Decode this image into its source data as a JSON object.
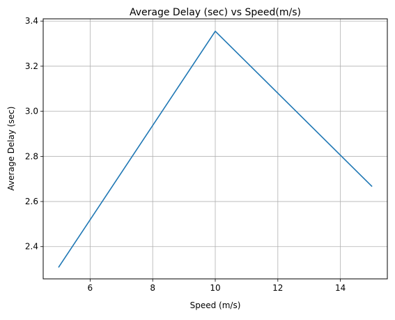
{
  "chart_data": {
    "type": "line",
    "title": "Average Delay (sec) vs Speed(m/s)",
    "xlabel": "Speed (m/s)",
    "ylabel": "Average Delay (sec)",
    "xlim": [
      4.5,
      15.5
    ],
    "ylim": [
      2.257,
      3.41
    ],
    "x_ticks": [
      6,
      8,
      10,
      12,
      14
    ],
    "x_tick_labels": [
      "6",
      "8",
      "10",
      "12",
      "14"
    ],
    "y_ticks": [
      2.4,
      2.6,
      2.8,
      3.0,
      3.2,
      3.4
    ],
    "y_tick_labels": [
      "2.4",
      "2.6",
      "2.8",
      "3.0",
      "3.2",
      "3.4"
    ],
    "grid": true,
    "series": [
      {
        "color": "#1f77b4",
        "x": [
          5,
          10,
          15
        ],
        "y": [
          2.31,
          3.355,
          2.668
        ]
      }
    ]
  }
}
